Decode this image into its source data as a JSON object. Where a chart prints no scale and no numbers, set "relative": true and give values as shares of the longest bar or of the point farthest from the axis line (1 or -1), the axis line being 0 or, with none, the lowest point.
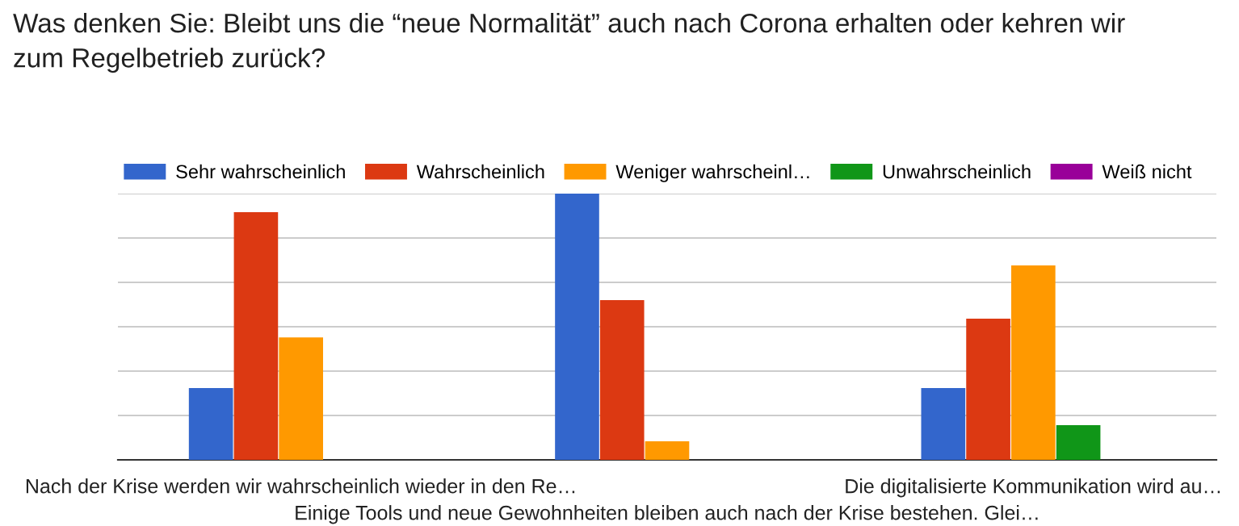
{
  "chart_data": {
    "type": "bar",
    "title": "Was denken Sie: Bleibt uns die “neue Normalität” auch nach Corona erhalten oder kehren wir\nzum Regelbetrieb zurück?",
    "categories": [
      "Nach der Krise werden wir wahrscheinlich wieder in den Re…",
      "Einige Tools und neue Gewohnheiten bleiben auch nach der Krise bestehen. Glei…",
      "Die digitalisierte Kommunikation wird au…"
    ],
    "relative": true,
    "grid": "y",
    "legend": "top",
    "series": [
      {
        "name": "Sehr wahrscheinlich",
        "color": "#3366cc",
        "values": [
          0.27,
          1,
          0.27
        ]
      },
      {
        "name": "Wahrscheinlich",
        "color": "#dc3912",
        "values": [
          0.93,
          0.6,
          0.53
        ]
      },
      {
        "name": "Weniger wahrscheinl…",
        "color": "#ff9900",
        "values": [
          0.46,
          0.07,
          0.73
        ]
      },
      {
        "name": "Unwahrscheinlich",
        "color": "#109618",
        "values": [
          0,
          0,
          0.13
        ]
      },
      {
        "name": "Weiß nicht",
        "color": "#990099",
        "values": [
          0,
          0,
          0
        ]
      }
    ]
  }
}
